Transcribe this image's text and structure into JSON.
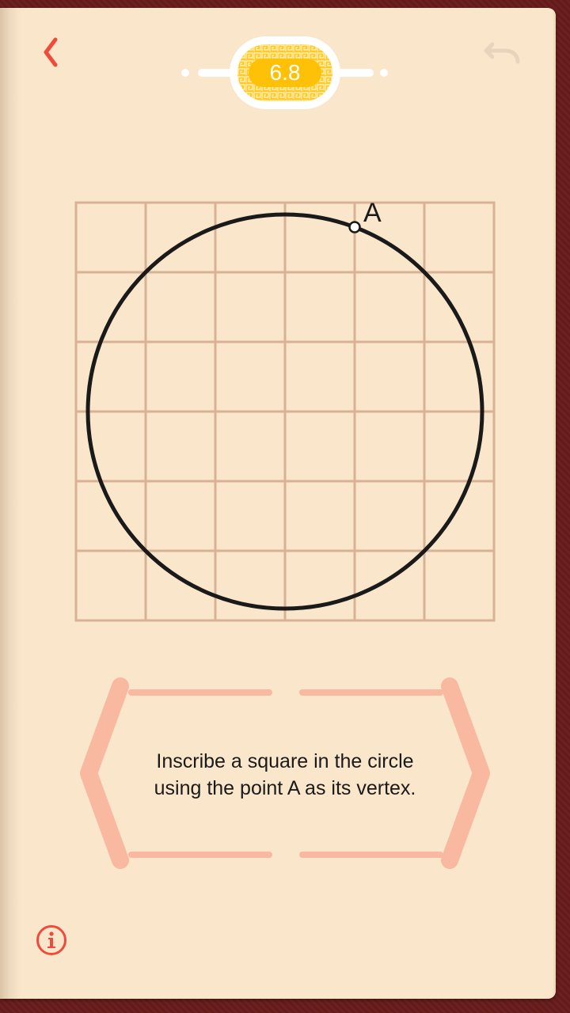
{
  "header": {
    "level": "6.8"
  },
  "puzzle": {
    "point_label": "A"
  },
  "hint": {
    "line1": "Inscribe a square in the circle",
    "line2": "using the point A as its vertex."
  },
  "icons": {
    "back": "chevron-left-icon",
    "undo": "undo-icon",
    "info": "info-icon"
  },
  "colors": {
    "accent_red": "#f04a3a",
    "page": "#fae6cb",
    "grid": "#d8b296",
    "badge_gold": "#ffc107",
    "hint_frame": "#f9b9a0",
    "undo_disabled": "#e6d4bd"
  }
}
